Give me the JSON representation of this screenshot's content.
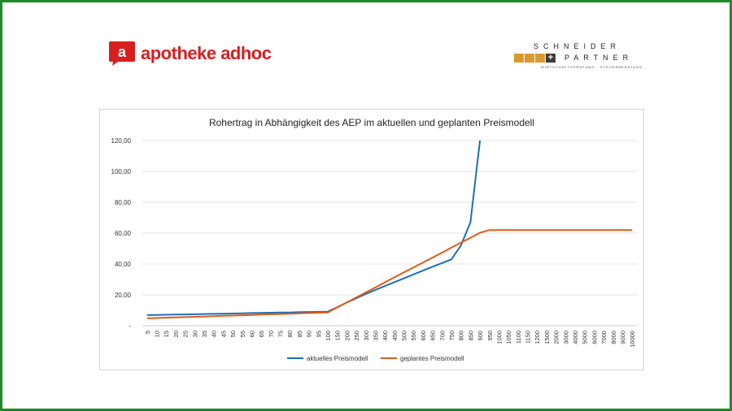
{
  "brand": {
    "left_logo_letter": "a",
    "left_logo_text": "apotheke adhoc",
    "right_logo_line1": "SCHNEIDER",
    "right_logo_plus": "+",
    "right_logo_line2": "PARTNER",
    "right_logo_line3": "WIRTSCHAFTSPRÜFUNG · STEUERBERATUNG"
  },
  "colors": {
    "frame": "#1e8a2c",
    "brand_red": "#d81e1e",
    "series_current": "#1f6fb5",
    "series_planned": "#e05a1a",
    "sp_gold": "#d99a2e"
  },
  "chart_data": {
    "type": "line",
    "title": "Rohertrag in Abhängigkeit des AEP  im aktuellen und geplanten Preismodell",
    "xlabel": "",
    "ylabel": "",
    "categories": [
      "5",
      "10",
      "15",
      "20",
      "25",
      "30",
      "35",
      "40",
      "45",
      "50",
      "55",
      "60",
      "65",
      "70",
      "75",
      "80",
      "85",
      "90",
      "95",
      "100",
      "150",
      "200",
      "250",
      "300",
      "350",
      "400",
      "450",
      "500",
      "550",
      "600",
      "650",
      "700",
      "750",
      "800",
      "850",
      "900",
      "950",
      "1000",
      "1050",
      "1100",
      "1150",
      "1200",
      "1500",
      "2000",
      "3000",
      "4000",
      "5000",
      "6000",
      "7000",
      "8000",
      "9000",
      "10000"
    ],
    "y_tick_labels": [
      "-",
      "20,00",
      "40,00",
      "60,00",
      "80,00",
      "100,00",
      "120,00"
    ],
    "ylim": [
      0,
      120
    ],
    "grid": true,
    "legend_position": "bottom",
    "series": [
      {
        "name": "aktuelles Preismodell",
        "values": [
          6.9,
          7.0,
          7.1,
          7.2,
          7.3,
          7.4,
          7.6,
          7.7,
          7.8,
          7.9,
          8.0,
          8.2,
          8.3,
          8.4,
          8.5,
          8.6,
          8.8,
          8.9,
          9.0,
          9.1,
          12.0,
          15.0,
          17.8,
          20.6,
          23.2,
          25.7,
          28.2,
          30.7,
          33.2,
          35.7,
          38.2,
          40.6,
          43.0,
          52.0,
          67.0,
          120.0,
          null,
          null,
          null,
          null,
          null,
          null,
          null,
          null,
          null,
          null,
          null,
          null,
          null,
          null,
          null,
          null
        ]
      },
      {
        "name": "geplantes Preismodell",
        "values": [
          4.8,
          5.0,
          5.2,
          5.4,
          5.6,
          5.8,
          6.0,
          6.2,
          6.4,
          6.6,
          6.8,
          7.0,
          7.2,
          7.4,
          7.6,
          7.8,
          8.0,
          8.2,
          8.4,
          8.6,
          11.9,
          15.1,
          18.3,
          21.6,
          24.8,
          28.1,
          31.3,
          34.5,
          37.7,
          40.9,
          44.1,
          47.3,
          50.6,
          53.8,
          57.0,
          60.2,
          62.0,
          62.0,
          62.0,
          62.0,
          62.0,
          62.0,
          62.0,
          62.0,
          62.0,
          62.0,
          62.0,
          62.0,
          62.0,
          62.0,
          62.0,
          62.0
        ]
      }
    ]
  }
}
